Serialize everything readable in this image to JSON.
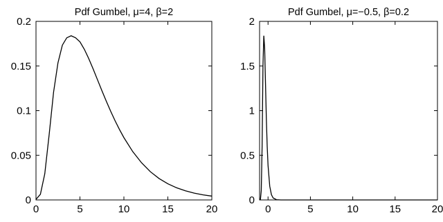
{
  "chart_data": [
    {
      "type": "line",
      "title": "Pdf Gumbel, μ=4, β=2",
      "xlabel": "",
      "ylabel": "",
      "xlim": [
        0,
        20
      ],
      "ylim": [
        0,
        0.2
      ],
      "xticks": [
        0,
        5,
        10,
        15,
        20
      ],
      "xtick_labels": [
        "0",
        "5",
        "10",
        "15",
        "20"
      ],
      "yticks": [
        0,
        0.05,
        0.1,
        0.15,
        0.2
      ],
      "ytick_labels": [
        "0",
        "0.05",
        "0.1",
        "0.15",
        "0.2"
      ],
      "grid": false,
      "series": [
        {
          "x": [
            0,
            0.5,
            1,
            1.5,
            2,
            2.5,
            3,
            3.5,
            4,
            4.5,
            5,
            5.5,
            6,
            6.5,
            7,
            7.5,
            8,
            8.5,
            9,
            9.5,
            10,
            11,
            12,
            13,
            14,
            15,
            16,
            17,
            18,
            19,
            20
          ],
          "y": [
            0.0006,
            0.0063,
            0.0293,
            0.0734,
            0.1207,
            0.1536,
            0.1734,
            0.1816,
            0.1839,
            0.1816,
            0.1771,
            0.1687,
            0.1583,
            0.1467,
            0.1345,
            0.1223,
            0.1105,
            0.0992,
            0.0886,
            0.0788,
            0.0698,
            0.0542,
            0.0417,
            0.0317,
            0.024,
            0.0181,
            0.0136,
            0.0102,
            0.0076,
            0.0057,
            0.0043
          ]
        }
      ]
    },
    {
      "type": "line",
      "title": "Pdf Gumbel, μ=−0.5, β=0.2",
      "xlabel": "",
      "ylabel": "",
      "xlim": [
        -1,
        20
      ],
      "ylim": [
        0,
        2
      ],
      "xticks": [
        0,
        5,
        10,
        15,
        20
      ],
      "xtick_labels": [
        "0",
        "5",
        "10",
        "15",
        "20"
      ],
      "yticks": [
        0,
        0.5,
        1,
        1.5,
        2
      ],
      "ytick_labels": [
        "0",
        "0.5",
        "1",
        "1.5",
        "2"
      ],
      "grid": false,
      "series": [
        {
          "x": [
            -1,
            -0.9,
            -0.8,
            -0.7,
            -0.6,
            -0.5,
            -0.4,
            -0.3,
            -0.2,
            -0.1,
            0,
            0.2,
            0.4,
            0.6,
            1,
            1.5,
            2,
            5,
            10,
            15,
            20
          ],
          "y": [
            0.0,
            0.0039,
            0.1063,
            0.6003,
            1.5014,
            1.8394,
            1.7012,
            1.3045,
            0.907,
            0.6019,
            0.387,
            0.1538,
            0.0587,
            0.0221,
            0.0031,
            0.0002,
            0.0,
            0.0,
            0.0,
            0.0,
            0.0
          ]
        }
      ]
    }
  ]
}
